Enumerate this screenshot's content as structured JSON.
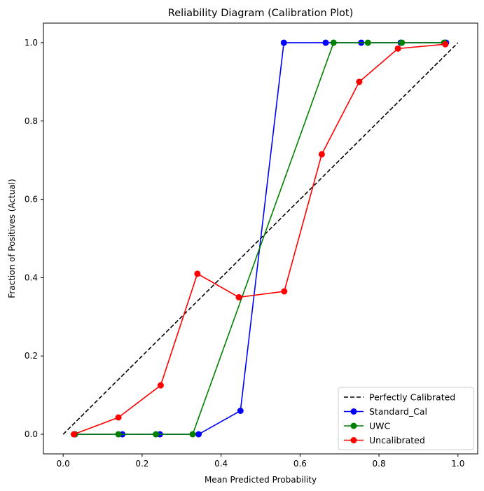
{
  "chart_data": {
    "type": "line",
    "title": "Reliability Diagram (Calibration Plot)",
    "xlabel": "Mean Predicted Probability",
    "ylabel": "Fraction of Positives (Actual)",
    "xlim": [
      -0.05,
      1.05
    ],
    "ylim": [
      -0.05,
      1.05
    ],
    "xticks": [
      0.0,
      0.2,
      0.4,
      0.6,
      0.8,
      1.0
    ],
    "yticks": [
      0.0,
      0.2,
      0.4,
      0.6,
      0.8,
      1.0
    ],
    "xtick_labels": [
      "0.0",
      "0.2",
      "0.4",
      "0.6",
      "0.8",
      "1.0"
    ],
    "ytick_labels": [
      "0.0",
      "0.2",
      "0.4",
      "0.6",
      "0.8",
      "1.0"
    ],
    "legend_position": "bottom-right",
    "series": [
      {
        "name": "Perfectly Calibrated",
        "color": "#000000",
        "style": "dashed",
        "markers": false,
        "x": [
          0.0,
          1.0
        ],
        "y": [
          0.0,
          1.0
        ]
      },
      {
        "name": "Standard_Cal",
        "color": "#0000ff",
        "style": "solid",
        "markers": true,
        "x": [
          0.03,
          0.15,
          0.245,
          0.343,
          0.449,
          0.559,
          0.665,
          0.755,
          0.855,
          0.97
        ],
        "y": [
          0.0,
          0.0,
          0.0,
          0.0,
          0.06,
          1.0,
          1.0,
          1.0,
          1.0,
          1.0
        ]
      },
      {
        "name": "UWC",
        "color": "#008000",
        "style": "solid",
        "markers": true,
        "x": [
          0.03,
          0.14,
          0.235,
          0.328,
          0.685,
          0.772,
          0.858,
          0.965
        ],
        "y": [
          0.0,
          0.0,
          0.0,
          0.0,
          1.0,
          1.0,
          1.0,
          1.0
        ]
      },
      {
        "name": "Uncalibrated",
        "color": "#ff0000",
        "style": "solid",
        "markers": true,
        "x": [
          0.027,
          0.14,
          0.247,
          0.34,
          0.445,
          0.56,
          0.655,
          0.75,
          0.848,
          0.968
        ],
        "y": [
          0.0,
          0.043,
          0.125,
          0.41,
          0.35,
          0.365,
          0.715,
          0.9,
          0.985,
          0.996
        ]
      }
    ]
  }
}
